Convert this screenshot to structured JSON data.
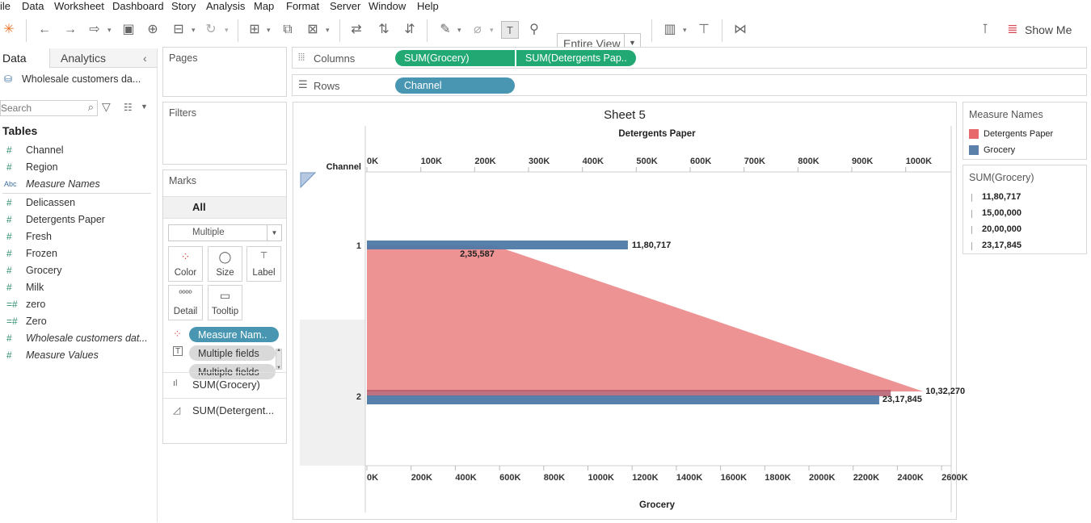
{
  "menu": [
    "ile",
    "Data",
    "Worksheet",
    "Dashboard",
    "Story",
    "Analysis",
    "Map",
    "Format",
    "Server",
    "Window",
    "Help"
  ],
  "toolbar": {
    "view_mode": "Entire View",
    "show_me": "Show Me"
  },
  "left_pane": {
    "tabs": {
      "data": "Data",
      "analytics": "Analytics"
    },
    "datasource": "Wholesale customers da...",
    "search_placeholder": "Search",
    "tables_heading": "Tables",
    "fields": [
      {
        "name": "Channel",
        "type": "measure"
      },
      {
        "name": "Region",
        "type": "measure"
      },
      {
        "name": "Measure Names",
        "type": "text",
        "italic": true
      },
      {
        "name": "Delicassen",
        "type": "measure"
      },
      {
        "name": "Detergents Paper",
        "type": "measure"
      },
      {
        "name": "Fresh",
        "type": "measure"
      },
      {
        "name": "Frozen",
        "type": "measure"
      },
      {
        "name": "Grocery",
        "type": "measure"
      },
      {
        "name": "Milk",
        "type": "measure"
      },
      {
        "name": "zero",
        "type": "calc"
      },
      {
        "name": "Zero",
        "type": "calc"
      },
      {
        "name": "Wholesale customers dat...",
        "type": "measure",
        "italic": true
      },
      {
        "name": "Measure Values",
        "type": "measure",
        "italic": true
      }
    ]
  },
  "cards": {
    "pages": "Pages",
    "filters": "Filters",
    "marks": "Marks",
    "marks_all": "All",
    "mark_type": "Multiple",
    "mark_buttons": {
      "color": "Color",
      "size": "Size",
      "label": "Label",
      "detail": "Detail",
      "tooltip": "Tooltip"
    },
    "mark_pills": [
      "Measure Nam..",
      "Multiple fields",
      "Multiple fields"
    ],
    "mark_layers": [
      "SUM(Grocery)",
      "SUM(Detergent..."
    ]
  },
  "shelves": {
    "columns_label": "Columns",
    "rows_label": "Rows",
    "columns": [
      "SUM(Grocery)",
      "SUM(Detergents Pap.."
    ],
    "rows": [
      "Channel"
    ]
  },
  "legends": {
    "color_title": "Measure Names",
    "color_items": [
      {
        "label": "Detergents Paper",
        "color": "#e8696b"
      },
      {
        "label": "Grocery",
        "color": "#5b80a9"
      }
    ],
    "size_title": "SUM(Grocery)",
    "size_items": [
      "11,80,717",
      "15,00,000",
      "20,00,000",
      "23,17,845"
    ]
  },
  "chart_data": {
    "type": "bar",
    "title": "Sheet 5",
    "row_header": "Channel",
    "categories": [
      "1",
      "2"
    ],
    "top_axis": {
      "label": "Detergents Paper",
      "ticks": [
        0,
        100000,
        200000,
        300000,
        400000,
        500000,
        600000,
        700000,
        800000,
        900000,
        1000000
      ],
      "tick_labels": [
        "0K",
        "100K",
        "200K",
        "300K",
        "400K",
        "500K",
        "600K",
        "700K",
        "800K",
        "900K",
        "1000K"
      ],
      "range": [
        0,
        1080000
      ]
    },
    "bottom_axis": {
      "label": "Grocery",
      "ticks": [
        0,
        200000,
        400000,
        600000,
        800000,
        1000000,
        1200000,
        1400000,
        1600000,
        1800000,
        2000000,
        2200000,
        2400000,
        2600000
      ],
      "tick_labels": [
        "0K",
        "200K",
        "400K",
        "600K",
        "800K",
        "1000K",
        "1200K",
        "1400K",
        "1600K",
        "1800K",
        "2000K",
        "2200K",
        "2400K",
        "2600K"
      ],
      "range": [
        0,
        2650000
      ]
    },
    "series": [
      {
        "name": "Grocery",
        "mark": "bar",
        "axis": "bottom",
        "color": "#4e79a7",
        "values": [
          1180717,
          2317845
        ],
        "labels": [
          "11,80,717",
          "23,17,845"
        ]
      },
      {
        "name": "Detergents Paper",
        "mark": "area",
        "axis": "top",
        "color": "#e8696b",
        "values": [
          235587,
          1032270
        ],
        "labels": [
          "2,35,587",
          "10,32,270"
        ]
      }
    ]
  }
}
